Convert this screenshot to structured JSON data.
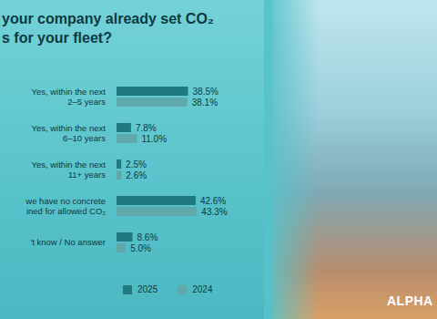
{
  "chart_data": {
    "type": "bar",
    "orientation": "horizontal",
    "title": "your company already set CO₂\ns for your fleet?",
    "categories": [
      "Yes, within the next\n2–5 years",
      "Yes, within the next\n6–10 years",
      "Yes, within the next\n11+ years",
      "we have no concrete\nined for allowed CO₂",
      "'t know / No answer"
    ],
    "series": [
      {
        "name": "2025",
        "color": "#1e7a80",
        "values": [
          38.5,
          7.8,
          2.5,
          42.6,
          8.6
        ],
        "value_labels": [
          "38.5%",
          "7.8%",
          "2.5%",
          "42.6%",
          "8.6%"
        ]
      },
      {
        "name": "2024",
        "color": "#5fa9ab",
        "values": [
          38.1,
          11.0,
          2.6,
          43.3,
          5.0
        ],
        "value_labels": [
          "38.1%",
          "11.0%",
          "2.6%",
          "43.3%",
          "5.0%"
        ]
      }
    ],
    "xlim": [
      0,
      50
    ],
    "tick_labels": false,
    "grid": false,
    "data_labels": true,
    "legend": "bottom"
  },
  "brand": "ALPHA"
}
